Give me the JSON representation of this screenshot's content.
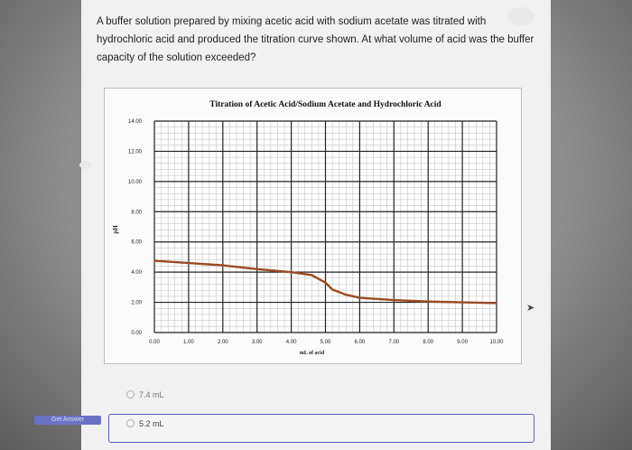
{
  "question": {
    "text": "A buffer solution prepared by mixing acetic acid with sodium acetate was titrated with hydrochloric acid and produced the titration curve shown. At what volume of acid was the buffer capacity of the solution exceeded?"
  },
  "chart_data": {
    "type": "line",
    "title": "Titration of Acetic Acid/Sodium Acetate and Hydrochloric Acid",
    "xlabel": "mL of acid",
    "ylabel": "pH",
    "xlim": [
      0,
      10
    ],
    "ylim": [
      0,
      14
    ],
    "x_ticks": [
      "0.00",
      "1.00",
      "2.00",
      "3.00",
      "4.00",
      "5.00",
      "6.00",
      "7.00",
      "8.00",
      "9.00",
      "10.00"
    ],
    "y_ticks": [
      "0.00",
      "2.00",
      "4.00",
      "6.00",
      "8.00",
      "10.00",
      "12.00",
      "14.00"
    ],
    "grid": true,
    "series": [
      {
        "color": "#9b4a24",
        "x": [
          0,
          1,
          2,
          3,
          4,
          4.6,
          5,
          5.2,
          5.6,
          6,
          7,
          8,
          9,
          10
        ],
        "y": [
          4.75,
          4.6,
          4.45,
          4.2,
          4.0,
          3.8,
          3.3,
          2.85,
          2.5,
          2.3,
          2.15,
          2.05,
          2.0,
          1.95
        ]
      }
    ]
  },
  "options": [
    {
      "label": "7.4 mL",
      "selected": false
    },
    {
      "label": "5.2 mL",
      "selected": true
    }
  ],
  "answer_button": {
    "label": "Get Answer"
  }
}
